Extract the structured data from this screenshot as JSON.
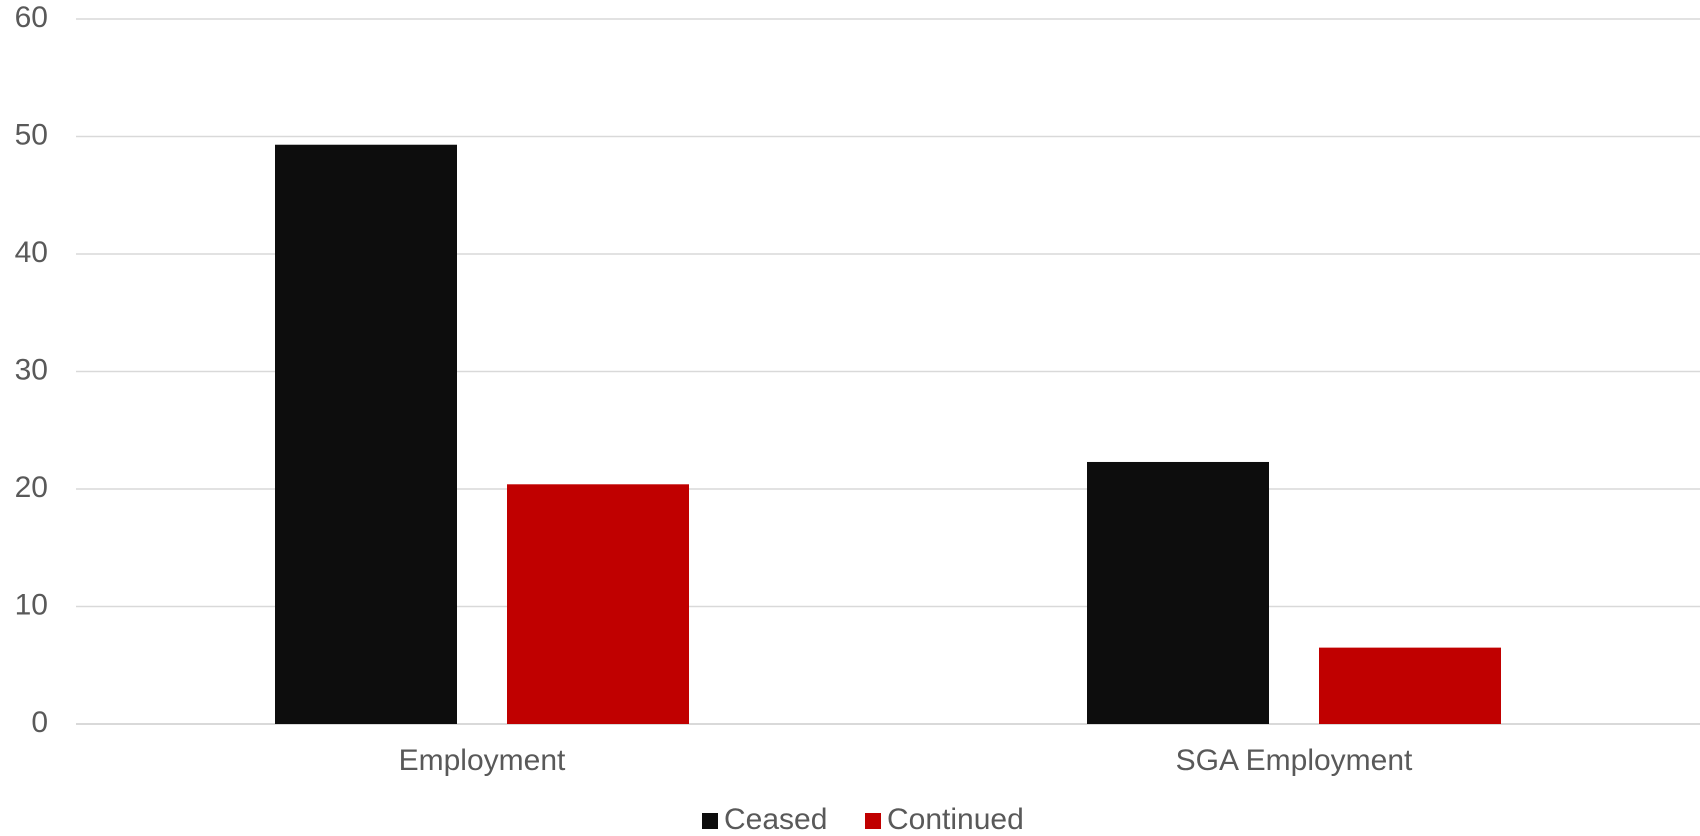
{
  "chart_data": {
    "type": "bar",
    "categories": [
      "Employment",
      "SGA Employment"
    ],
    "series": [
      {
        "name": "Ceased",
        "values": [
          49.3,
          22.3
        ],
        "color": "#0d0d0d"
      },
      {
        "name": "Continued",
        "values": [
          20.4,
          6.5
        ],
        "color": "#c00000"
      }
    ],
    "ylim": [
      0,
      60
    ],
    "yticks": [
      0,
      10,
      20,
      30,
      40,
      50,
      60
    ],
    "title": "",
    "xlabel": "",
    "ylabel": "",
    "grid": true,
    "gridline_color": "#d9d9d9",
    "legend_position": "bottom"
  }
}
